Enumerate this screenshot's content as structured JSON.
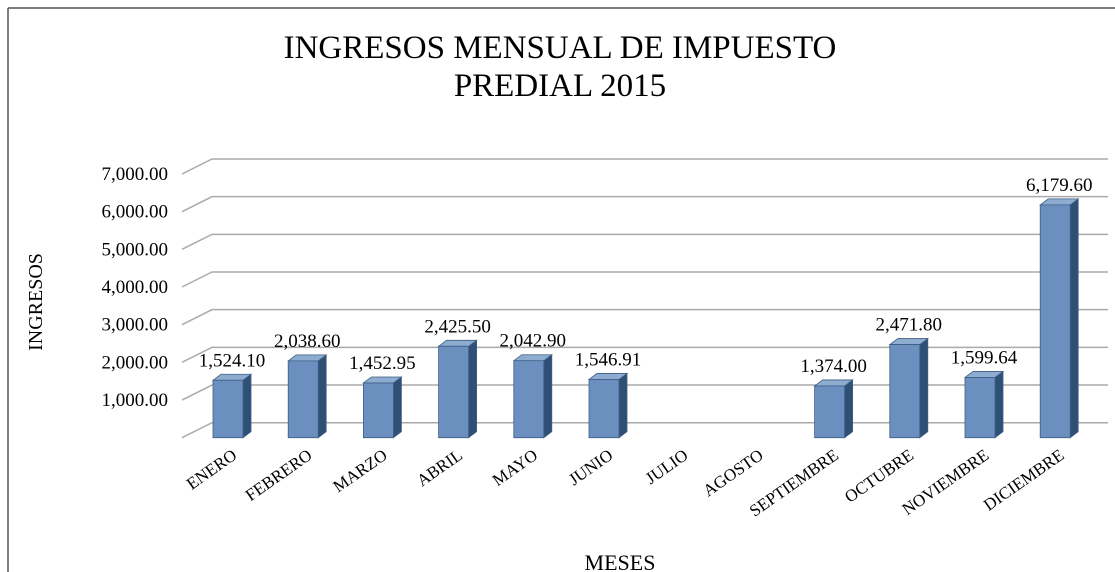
{
  "chart_data": {
    "type": "bar",
    "title": [
      "INGRESOS MENSUAL  DE IMPUESTO",
      "PREDIAL 2015"
    ],
    "y_label": "INGRESOS",
    "x_label": "MESES",
    "categories": [
      "ENERO",
      "FEBRERO",
      "MARZO",
      "ABRIL",
      "MAYO",
      "JUNIO",
      "JULIO",
      "AGOSTO",
      "SEPTIEMBRE",
      "OCTUBRE",
      "NOVIEMBRE",
      "DICIEMBRE"
    ],
    "values": [
      1524.1,
      2038.6,
      1452.95,
      2425.5,
      2042.9,
      1546.91,
      null,
      null,
      1374.0,
      2471.8,
      1599.64,
      6179.6
    ],
    "value_labels": [
      "1,524.10",
      "2,038.60",
      "1,452.95",
      "2,425.50",
      "2,042.90",
      "1,546.91",
      null,
      null,
      "1,374.00",
      "2,471.80",
      "1,599.64",
      "6,179.60"
    ],
    "color": "#6b8fbf",
    "ylim": [
      0,
      7000
    ],
    "yticks": [
      {
        "value": 1000,
        "label": "1,000.00"
      },
      {
        "value": 2000,
        "label": "2,000.00"
      },
      {
        "value": 3000,
        "label": "3,000.00"
      },
      {
        "value": 4000,
        "label": "4,000.00"
      },
      {
        "value": 5000,
        "label": "5,000.00"
      },
      {
        "value": 6000,
        "label": "6,000.00"
      },
      {
        "value": 7000,
        "label": "7,000.00"
      }
    ],
    "grid": true
  }
}
